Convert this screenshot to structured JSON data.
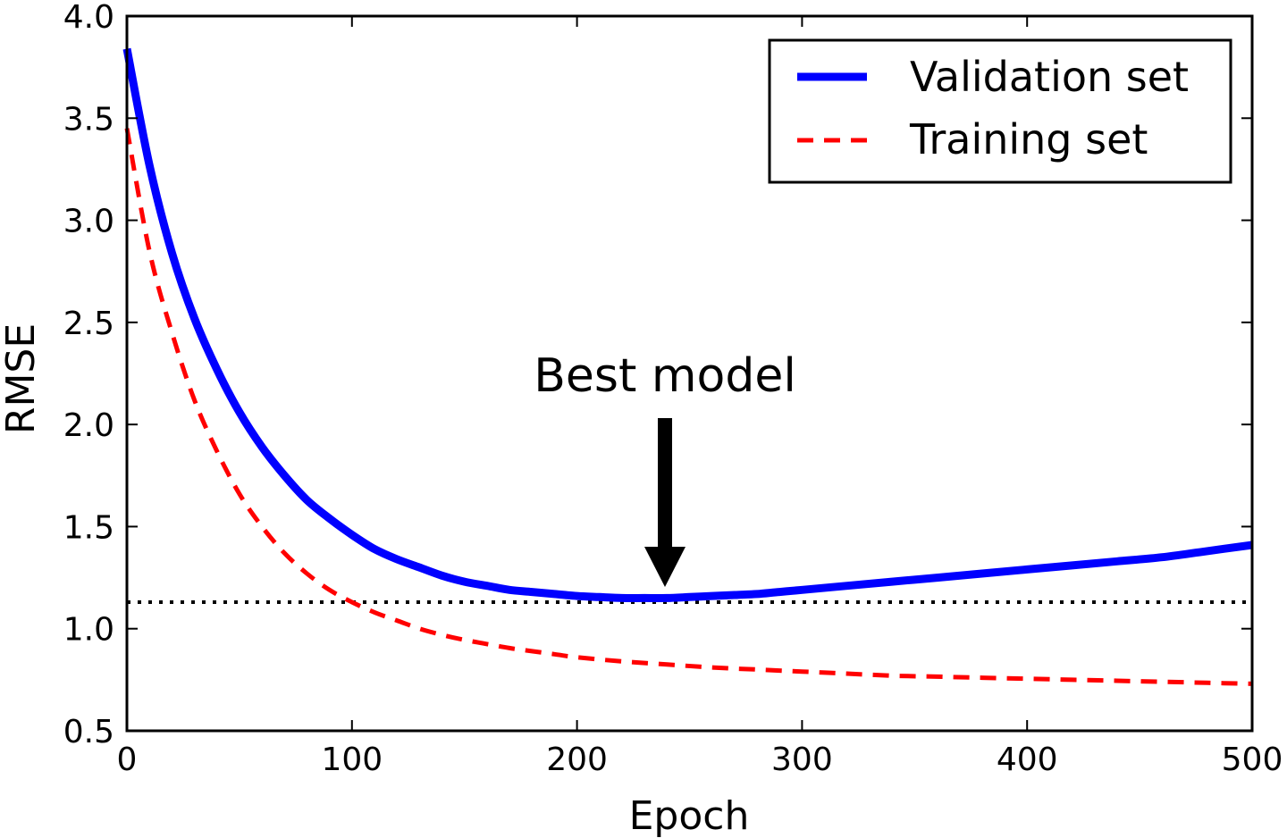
{
  "chart_data": {
    "type": "line",
    "xlabel": "Epoch",
    "ylabel": "RMSE",
    "xlim": [
      0,
      500
    ],
    "ylim": [
      0.5,
      4.0
    ],
    "xticks": [
      0,
      100,
      200,
      300,
      400,
      500
    ],
    "yticks": [
      0.5,
      1.0,
      1.5,
      2.0,
      2.5,
      3.0,
      3.5,
      4.0
    ],
    "xtick_labels": [
      "0",
      "100",
      "200",
      "300",
      "400",
      "500"
    ],
    "ytick_labels": [
      "0.5",
      "1.0",
      "1.5",
      "2.0",
      "2.5",
      "3.0",
      "3.5",
      "4.0"
    ],
    "grid": false,
    "legend_position": "top-right",
    "series": [
      {
        "name": "Validation set",
        "color": "#0000ff",
        "style": "solid",
        "x": [
          0,
          10,
          20,
          30,
          40,
          50,
          60,
          70,
          80,
          90,
          100,
          110,
          120,
          130,
          140,
          150,
          160,
          170,
          180,
          190,
          200,
          210,
          220,
          230,
          240,
          250,
          260,
          270,
          280,
          290,
          300,
          320,
          340,
          360,
          380,
          400,
          420,
          440,
          460,
          480,
          500
        ],
        "y": [
          3.84,
          3.27,
          2.84,
          2.52,
          2.27,
          2.06,
          1.89,
          1.75,
          1.63,
          1.54,
          1.46,
          1.39,
          1.34,
          1.3,
          1.26,
          1.23,
          1.21,
          1.19,
          1.18,
          1.17,
          1.16,
          1.155,
          1.15,
          1.15,
          1.15,
          1.155,
          1.16,
          1.165,
          1.17,
          1.18,
          1.19,
          1.21,
          1.23,
          1.25,
          1.27,
          1.29,
          1.31,
          1.33,
          1.35,
          1.38,
          1.41
        ]
      },
      {
        "name": "Training set",
        "color": "#ff0000",
        "style": "dashed",
        "x": [
          0,
          10,
          20,
          30,
          40,
          50,
          60,
          70,
          80,
          90,
          100,
          110,
          120,
          130,
          140,
          150,
          160,
          170,
          180,
          190,
          200,
          220,
          240,
          260,
          280,
          300,
          320,
          340,
          360,
          380,
          400,
          420,
          440,
          460,
          480,
          500
        ],
        "y": [
          3.45,
          2.85,
          2.45,
          2.12,
          1.87,
          1.66,
          1.5,
          1.37,
          1.27,
          1.19,
          1.13,
          1.08,
          1.04,
          1.0,
          0.97,
          0.945,
          0.925,
          0.905,
          0.89,
          0.875,
          0.86,
          0.84,
          0.825,
          0.81,
          0.8,
          0.79,
          0.78,
          0.77,
          0.765,
          0.76,
          0.755,
          0.75,
          0.745,
          0.74,
          0.735,
          0.73
        ]
      }
    ],
    "reference_line": {
      "y": 1.13,
      "color": "#000000",
      "style": "dotted"
    },
    "annotation": {
      "text": "Best model",
      "x": 239,
      "y": 1.17
    }
  }
}
